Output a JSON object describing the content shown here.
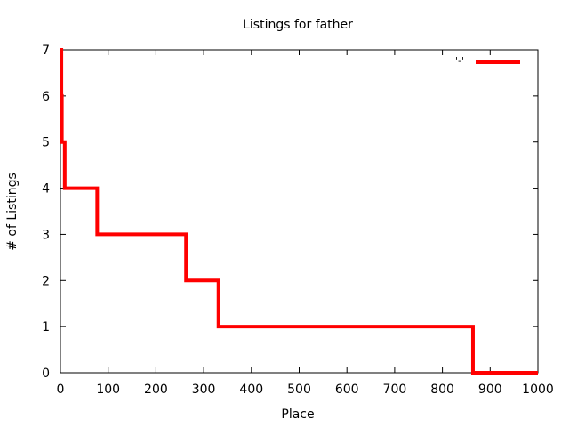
{
  "chart_data": {
    "type": "line",
    "style": "step",
    "title": "Listings for father",
    "xlabel": "Place",
    "ylabel": "# of Listings",
    "xlim": [
      0,
      1000
    ],
    "ylim": [
      0,
      7
    ],
    "xticks": [
      0,
      100,
      200,
      300,
      400,
      500,
      600,
      700,
      800,
      900,
      1000
    ],
    "yticks": [
      0,
      1,
      2,
      3,
      4,
      5,
      6,
      7
    ],
    "grid": false,
    "legend": {
      "placement": "top-right",
      "entries": [
        {
          "label": "'-'",
          "color": "#ff0000"
        }
      ]
    },
    "series": [
      {
        "name": "'-'",
        "color": "#ff0000",
        "x": [
          0,
          1,
          2,
          3,
          8,
          9,
          76,
          77,
          262,
          263,
          330,
          331,
          863,
          864,
          1000
        ],
        "y": [
          7,
          7,
          6,
          5,
          5,
          4,
          4,
          3,
          3,
          2,
          2,
          1,
          1,
          0,
          0
        ]
      }
    ]
  }
}
